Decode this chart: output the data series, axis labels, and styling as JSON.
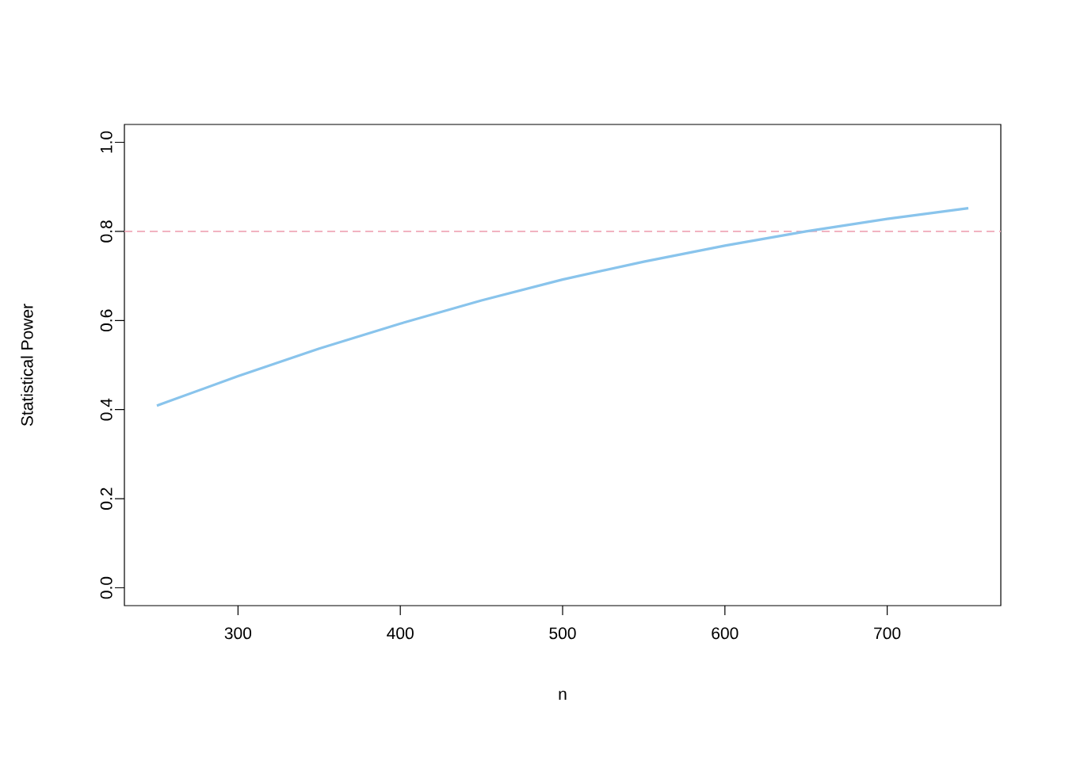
{
  "chart_data": {
    "type": "line",
    "xlabel": "n",
    "ylabel": "Statistical Power",
    "x": [
      250,
      300,
      350,
      400,
      450,
      500,
      550,
      600,
      650,
      700,
      750
    ],
    "series": [
      {
        "color": "#89c4ec",
        "values": [
          0.409,
          0.475,
          0.537,
          0.593,
          0.645,
          0.692,
          0.732,
          0.768,
          0.8,
          0.828,
          0.852
        ]
      }
    ],
    "xlim": [
      230,
      770
    ],
    "ylim": [
      -0.04,
      1.04
    ],
    "xticks": [
      300,
      400,
      500,
      600,
      700
    ],
    "yticks": [
      {
        "value": 0,
        "label": "0.0"
      },
      {
        "value": 0.2,
        "label": "0.2"
      },
      {
        "value": 0.4,
        "label": "0.4"
      },
      {
        "value": 0.6,
        "label": "0.6"
      },
      {
        "value": 0.8,
        "label": "0.8"
      },
      {
        "value": 1,
        "label": "1.0"
      }
    ],
    "ref_lines": [
      {
        "axis": "y",
        "value": 0.8,
        "color": "#f0a8b8",
        "line_style": "dashed"
      }
    ],
    "grid": false,
    "legend": false,
    "marker": "none"
  }
}
